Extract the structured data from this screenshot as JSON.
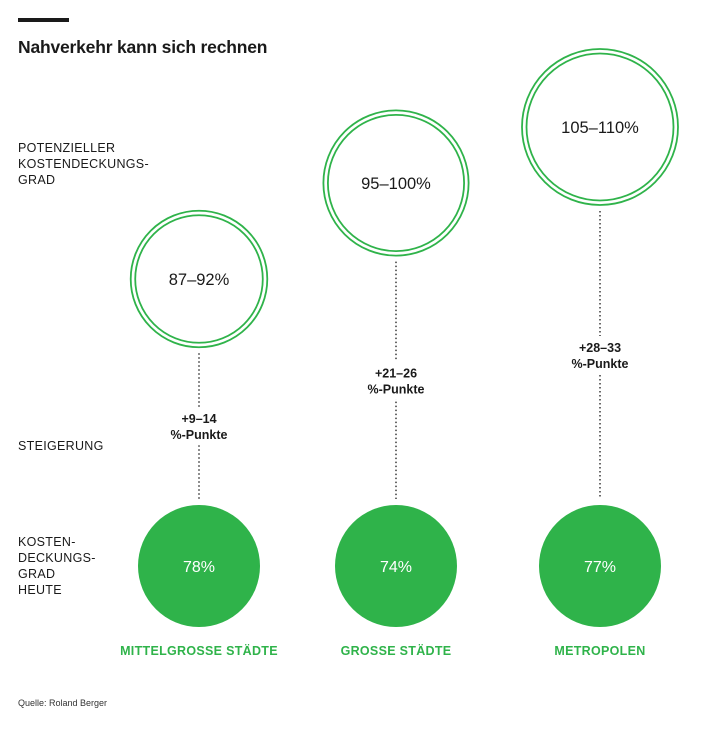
{
  "title": "Nahverkehr kann sich rechnen",
  "source": "Quelle: Roland Berger",
  "colors": {
    "green": "#2fb34a",
    "text": "#1a1a1a"
  },
  "row_labels": {
    "potential": "POTENZIELLER\nKOSTENDECKUNGS-\nGRAD",
    "increase": "STEIGERUNG",
    "current": "KOSTEN-\nDECKUNGS-\nGRAD\nHEUTE"
  },
  "chart_data": {
    "type": "bubble",
    "value_unit": "%",
    "categories": [
      "MITTELGROSSE STÄDTE",
      "GROSSE STÄDTE",
      "METROPOLEN"
    ],
    "current": [
      {
        "value": 78,
        "label": "78%"
      },
      {
        "value": 74,
        "label": "74%"
      },
      {
        "value": 77,
        "label": "77%"
      }
    ],
    "potential": [
      {
        "range": [
          87,
          92
        ],
        "label": "87–92%"
      },
      {
        "range": [
          95,
          100
        ],
        "label": "95–100%"
      },
      {
        "range": [
          105,
          110
        ],
        "label": "105–110%"
      }
    ],
    "increase": [
      {
        "range": [
          9,
          14
        ],
        "label_line1": "+9–14",
        "label_line2": "%-Punkte"
      },
      {
        "range": [
          21,
          26
        ],
        "label_line1": "+21–26",
        "label_line2": "%-Punkte"
      },
      {
        "range": [
          28,
          33
        ],
        "label_line1": "+28–33",
        "label_line2": "%-Punkte"
      }
    ]
  }
}
